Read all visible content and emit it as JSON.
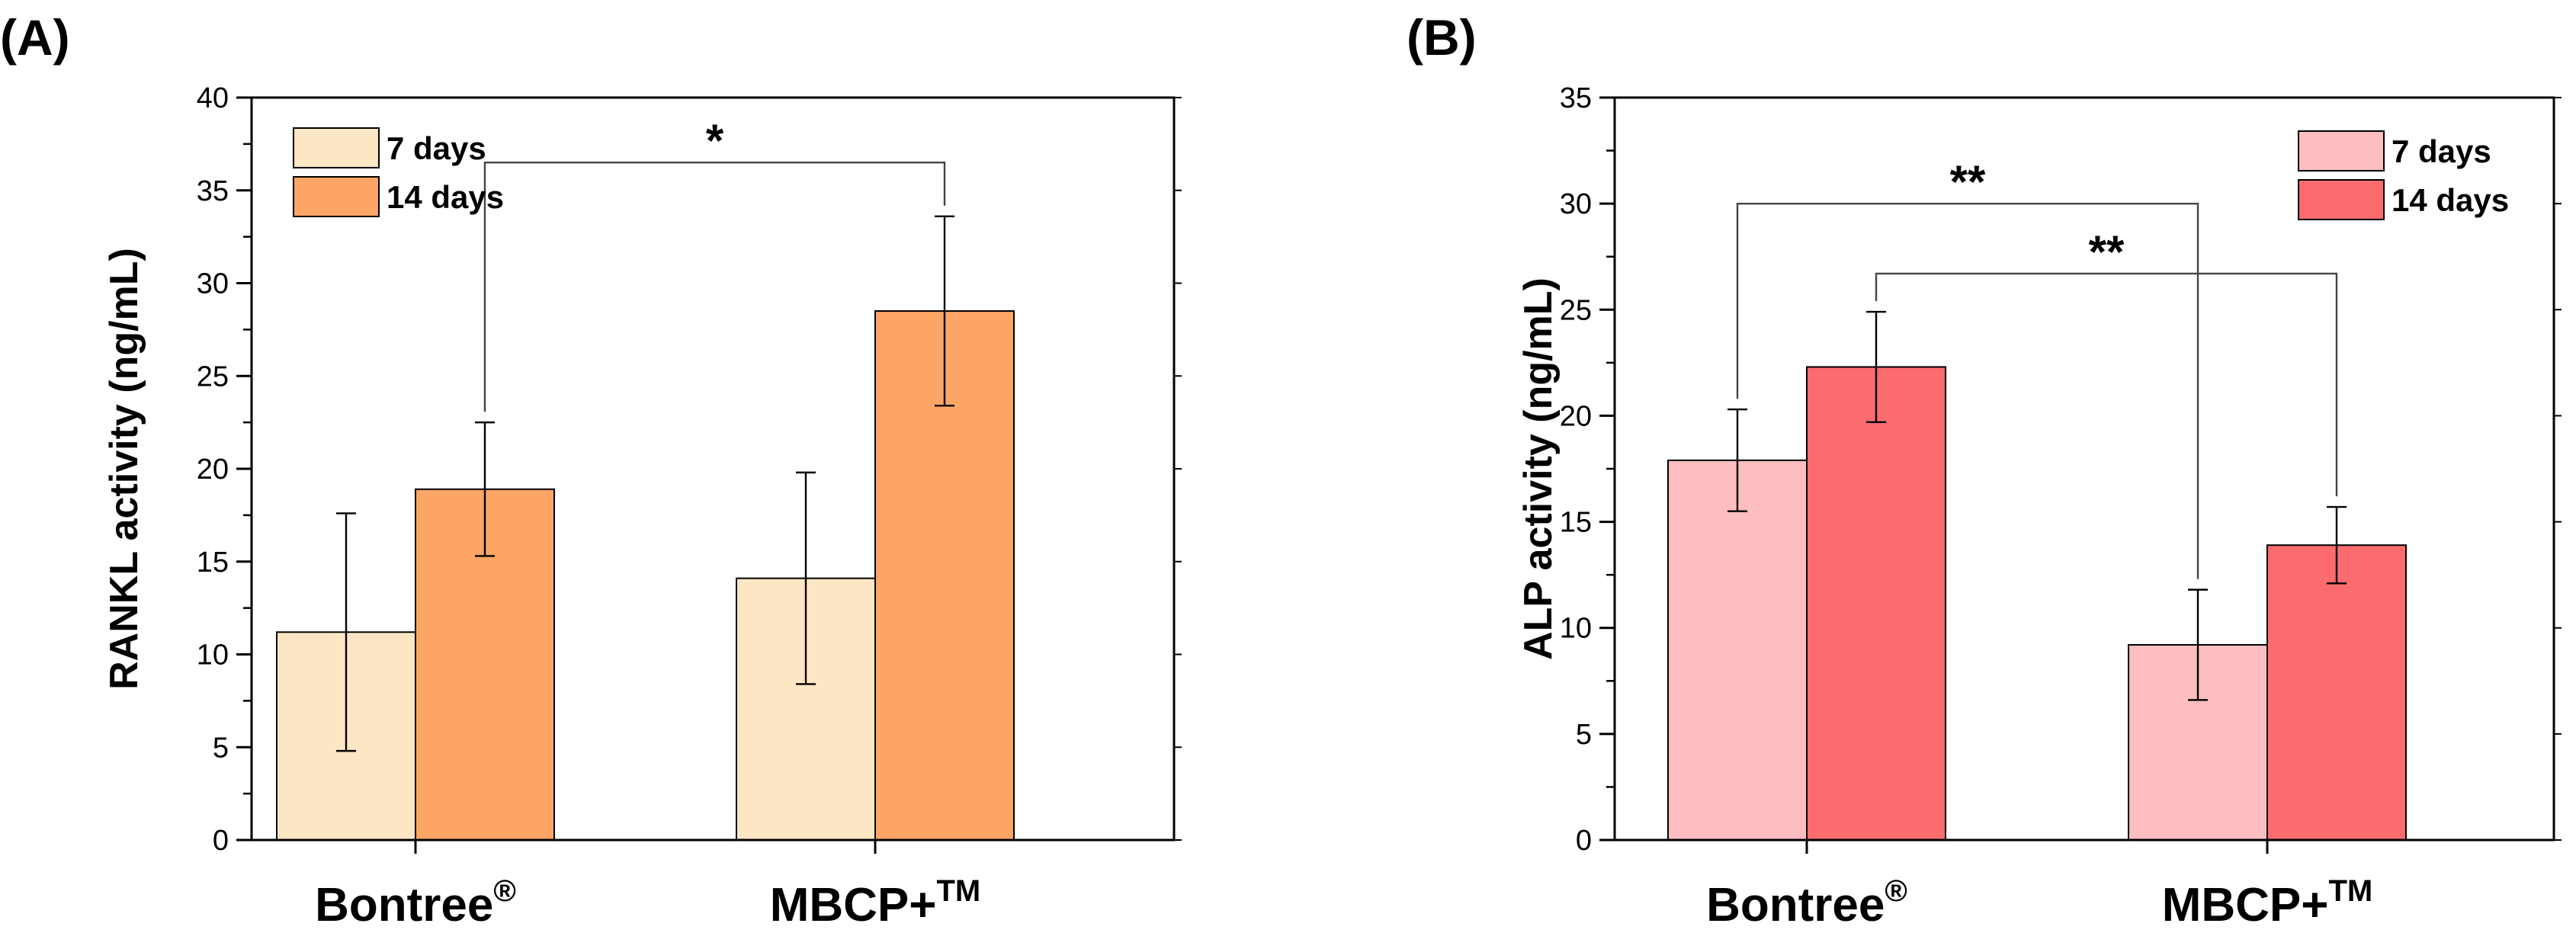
{
  "chart_data": [
    {
      "panel_label": "(A)",
      "type": "bar",
      "title": "",
      "xlabel": "",
      "ylabel": "RANKL activity (ng/mL)",
      "ylim": [
        0,
        40
      ],
      "yticks": [
        0,
        5,
        10,
        15,
        20,
        25,
        30,
        35,
        40
      ],
      "categories": [
        {
          "base": "Bontree",
          "sup": "®"
        },
        {
          "base": "MBCP+",
          "sup": "TM"
        }
      ],
      "series": [
        {
          "name": "7 days",
          "color": "#FDE6C3",
          "values": [
            11.2,
            14.1
          ],
          "errors": [
            6.4,
            5.7
          ]
        },
        {
          "name": "14 days",
          "color": "#FCA565",
          "values": [
            18.9,
            28.5
          ],
          "errors": [
            3.6,
            5.1
          ]
        }
      ],
      "legend": "top-left",
      "annotations": [
        {
          "text": "*",
          "from": [
            0,
            1
          ],
          "to": [
            1,
            1
          ],
          "level": 36.5
        }
      ]
    },
    {
      "panel_label": "(B)",
      "type": "bar",
      "title": "",
      "xlabel": "",
      "ylabel": "ALP activity (ng/mL)",
      "ylim": [
        0,
        35
      ],
      "yticks": [
        0,
        5,
        10,
        15,
        20,
        25,
        30,
        35
      ],
      "categories": [
        {
          "base": "Bontree",
          "sup": "®"
        },
        {
          "base": "MBCP+",
          "sup": "TM"
        }
      ],
      "series": [
        {
          "name": "7 days",
          "color": "#FCBEC0",
          "values": [
            17.9,
            9.2
          ],
          "errors": [
            2.4,
            2.6
          ]
        },
        {
          "name": "14 days",
          "color": "#FC6B6E",
          "values": [
            22.3,
            13.9
          ],
          "errors": [
            2.6,
            1.8
          ]
        }
      ],
      "legend": "top-right",
      "annotations": [
        {
          "text": "**",
          "from": [
            0,
            0
          ],
          "to": [
            1,
            0
          ],
          "level": 30.0
        },
        {
          "text": "**",
          "from": [
            0,
            1
          ],
          "to": [
            1,
            1
          ],
          "level": 26.7
        }
      ]
    }
  ]
}
